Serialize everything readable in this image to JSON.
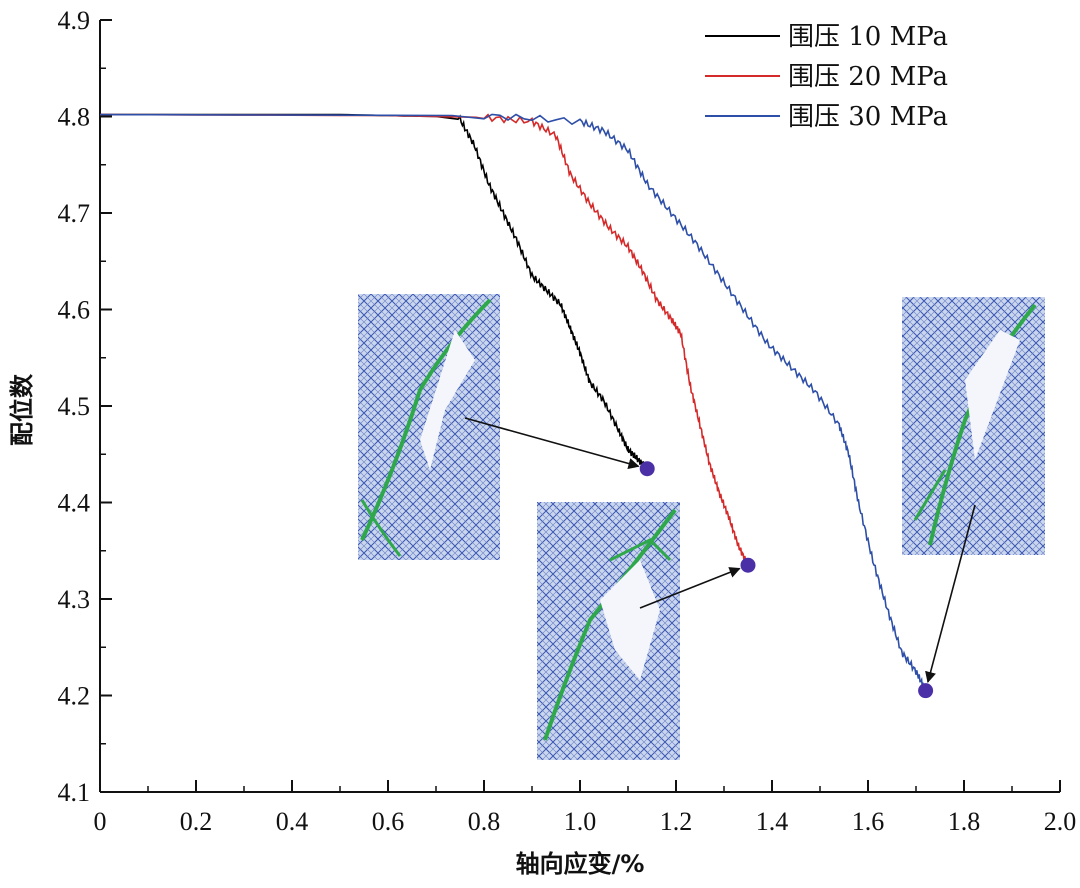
{
  "chart_data": {
    "type": "line",
    "title": "",
    "xlabel": "轴向应变/%",
    "ylabel": "配位数",
    "xlim": [
      0,
      2.0
    ],
    "ylim": [
      4.1,
      4.9
    ],
    "x_ticks": [
      "0",
      "0.2",
      "0.4",
      "0.6",
      "0.8",
      "1.0",
      "1.2",
      "1.4",
      "1.6",
      "1.8",
      "2.0"
    ],
    "y_ticks": [
      "4.1",
      "4.2",
      "4.3",
      "4.4",
      "4.5",
      "4.6",
      "4.7",
      "4.8",
      "4.9"
    ],
    "legend_position": "top-right",
    "series": [
      {
        "name": "围压 10 MPa",
        "color": "#000000",
        "end_marker": [
          1.14,
          4.435
        ],
        "points": [
          [
            0,
            4.802
          ],
          [
            0.5,
            4.802
          ],
          [
            0.7,
            4.8
          ],
          [
            0.75,
            4.797
          ],
          [
            0.78,
            4.77
          ],
          [
            0.81,
            4.73
          ],
          [
            0.84,
            4.7
          ],
          [
            0.87,
            4.67
          ],
          [
            0.9,
            4.635
          ],
          [
            0.93,
            4.62
          ],
          [
            0.96,
            4.605
          ],
          [
            0.98,
            4.58
          ],
          [
            1.0,
            4.555
          ],
          [
            1.02,
            4.525
          ],
          [
            1.05,
            4.505
          ],
          [
            1.08,
            4.475
          ],
          [
            1.1,
            4.455
          ],
          [
            1.12,
            4.445
          ],
          [
            1.14,
            4.435
          ]
        ]
      },
      {
        "name": "围压 20 MPa",
        "color": "#d42a2a",
        "end_marker": [
          1.35,
          4.335
        ],
        "points": [
          [
            0,
            4.802
          ],
          [
            0.6,
            4.801
          ],
          [
            0.8,
            4.799
          ],
          [
            0.9,
            4.795
          ],
          [
            0.95,
            4.78
          ],
          [
            0.98,
            4.74
          ],
          [
            1.02,
            4.71
          ],
          [
            1.06,
            4.685
          ],
          [
            1.1,
            4.665
          ],
          [
            1.13,
            4.64
          ],
          [
            1.16,
            4.61
          ],
          [
            1.19,
            4.59
          ],
          [
            1.21,
            4.575
          ],
          [
            1.23,
            4.52
          ],
          [
            1.25,
            4.48
          ],
          [
            1.27,
            4.44
          ],
          [
            1.29,
            4.41
          ],
          [
            1.31,
            4.385
          ],
          [
            1.33,
            4.355
          ],
          [
            1.35,
            4.335
          ]
        ]
      },
      {
        "name": "围压 30 MPa",
        "color": "#2e4fa8",
        "end_marker": [
          1.72,
          4.205
        ],
        "points": [
          [
            0,
            4.802
          ],
          [
            0.8,
            4.801
          ],
          [
            1.0,
            4.795
          ],
          [
            1.05,
            4.785
          ],
          [
            1.1,
            4.765
          ],
          [
            1.14,
            4.73
          ],
          [
            1.19,
            4.7
          ],
          [
            1.24,
            4.67
          ],
          [
            1.29,
            4.635
          ],
          [
            1.34,
            4.6
          ],
          [
            1.39,
            4.565
          ],
          [
            1.44,
            4.54
          ],
          [
            1.49,
            4.515
          ],
          [
            1.54,
            4.48
          ],
          [
            1.56,
            4.45
          ],
          [
            1.58,
            4.4
          ],
          [
            1.61,
            4.34
          ],
          [
            1.64,
            4.29
          ],
          [
            1.67,
            4.245
          ],
          [
            1.7,
            4.225
          ],
          [
            1.72,
            4.205
          ]
        ]
      }
    ]
  }
}
